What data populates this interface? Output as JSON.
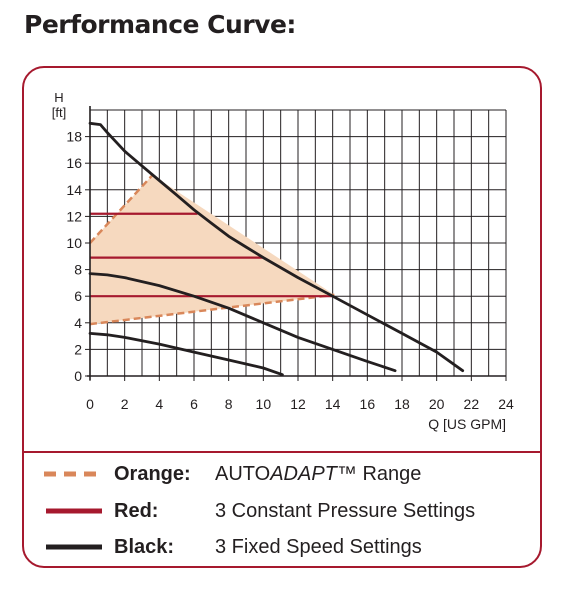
{
  "header": {
    "title": "Performance Curve:"
  },
  "colors": {
    "frame": "#a6192e",
    "orange": "#d9875a",
    "orange_fill": "#f6d9bf",
    "red": "#a6192e",
    "black": "#231f20"
  },
  "chart_data": {
    "type": "line",
    "title": "",
    "ylabel_top": "H",
    "ylabel_unit": "[ft]",
    "xlabel": "Q [US GPM]",
    "xlim": [
      0,
      24
    ],
    "ylim": [
      0,
      20
    ],
    "x_ticks": [
      0,
      2,
      4,
      6,
      8,
      10,
      12,
      14,
      16,
      18,
      20,
      22,
      24
    ],
    "y_ticks": [
      0,
      2,
      4,
      6,
      8,
      10,
      12,
      14,
      16,
      18
    ],
    "grid": true,
    "fixed_speed_curves": [
      {
        "points": [
          [
            0,
            19
          ],
          [
            0.6,
            18.9
          ],
          [
            1,
            18.3
          ],
          [
            2,
            16.9
          ],
          [
            3,
            15.8
          ],
          [
            4,
            14.7
          ],
          [
            5,
            13.6
          ],
          [
            6,
            12.5
          ],
          [
            7,
            11.5
          ],
          [
            8,
            10.5
          ],
          [
            9,
            9.7
          ],
          [
            10,
            8.9
          ],
          [
            12,
            7.4
          ],
          [
            14,
            6.0
          ],
          [
            16,
            4.6
          ],
          [
            18,
            3.2
          ],
          [
            20,
            1.8
          ],
          [
            21.5,
            0.4
          ]
        ]
      },
      {
        "points": [
          [
            0,
            7.7
          ],
          [
            1,
            7.6
          ],
          [
            2,
            7.4
          ],
          [
            4,
            6.8
          ],
          [
            6,
            6.0
          ],
          [
            8,
            5.1
          ],
          [
            10,
            4.0
          ],
          [
            12,
            2.9
          ],
          [
            14,
            2.0
          ],
          [
            16,
            1.1
          ],
          [
            17.6,
            0.4
          ]
        ]
      },
      {
        "points": [
          [
            0,
            3.2
          ],
          [
            1,
            3.1
          ],
          [
            2,
            2.9
          ],
          [
            4,
            2.4
          ],
          [
            6,
            1.8
          ],
          [
            8,
            1.2
          ],
          [
            10,
            0.6
          ],
          [
            11.1,
            0.1
          ]
        ]
      }
    ],
    "constant_pressure_lines": [
      {
        "y": 12.2,
        "x_end": 6.2
      },
      {
        "y": 8.9,
        "x_end": 10.0
      },
      {
        "y": 6.0,
        "x_end": 14.0
      }
    ],
    "autoadapt_range": {
      "outline": [
        [
          0,
          10.0
        ],
        [
          3.6,
          15.1
        ],
        [
          14.1,
          6.1
        ],
        [
          0,
          3.9
        ]
      ]
    }
  },
  "legend": [
    {
      "name": "Orange:",
      "desc_prefix": "AUTO",
      "desc_italic": "ADAPT",
      "desc_suffix": "™ Range",
      "swatch": "dashed-orange"
    },
    {
      "name": "Red:",
      "desc": "3 Constant Pressure Settings",
      "swatch": "solid-red"
    },
    {
      "name": "Black:",
      "desc": "3 Fixed Speed Settings",
      "swatch": "solid-black"
    }
  ]
}
